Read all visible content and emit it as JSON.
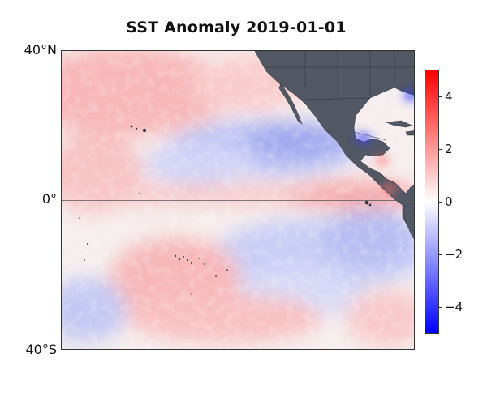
{
  "title": "SST Anomaly 2019-01-01",
  "latitude_labels": {
    "north": "40°N",
    "equator": "0°",
    "south": "40°S"
  },
  "colorbar": {
    "min": -5,
    "max": 5,
    "ticks": [
      4,
      2,
      0,
      -2,
      -4
    ],
    "tick_labels": [
      "4",
      "2",
      "0",
      "−2",
      "−4"
    ],
    "colors": {
      "negative": "#0000ff",
      "zero": "#ffffff",
      "positive": "#ff0000"
    }
  },
  "map": {
    "land_color": "#525864",
    "equator_line": true
  }
}
